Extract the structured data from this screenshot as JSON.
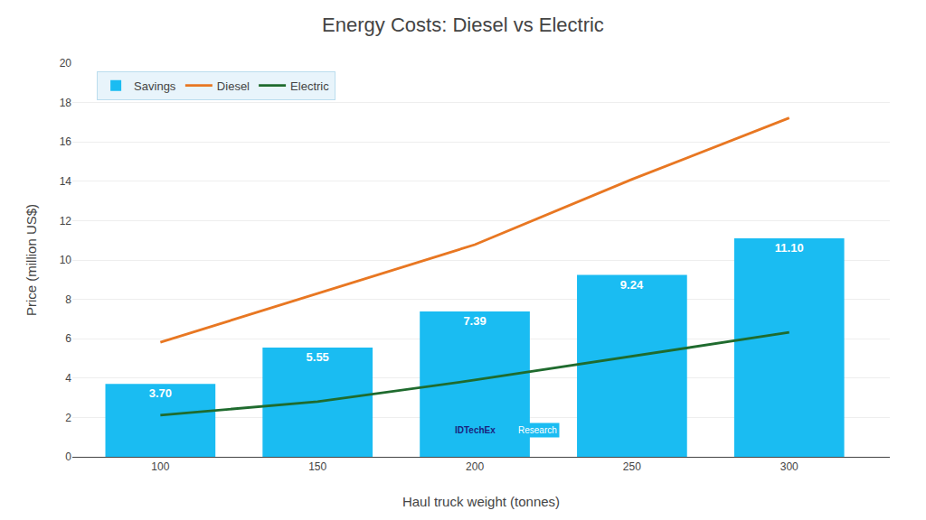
{
  "chart_data": {
    "type": "bar",
    "title": "Energy Costs: Diesel vs Electric",
    "x_label": "Haul truck weight (tonnes)",
    "y_label": "Price (million US$)",
    "x": [
      100,
      150,
      200,
      250,
      300
    ],
    "series": [
      {
        "name": "Savings",
        "type": "bar",
        "color": "#1ABCF2",
        "values": [
          3.7,
          5.55,
          7.39,
          9.24,
          11.1
        ],
        "value_labels": [
          "3.70",
          "5.55",
          "7.39",
          "9.24",
          "11.10"
        ]
      },
      {
        "name": "Diesel",
        "type": "line",
        "color": "#E87722",
        "values": [
          5.82,
          8.3,
          10.78,
          14.1,
          17.22
        ]
      },
      {
        "name": "Electric",
        "type": "line",
        "color": "#1F6B2E",
        "values": [
          2.12,
          2.8,
          3.9,
          5.1,
          6.32
        ]
      }
    ],
    "data_labels": true,
    "xlim": [
      72,
      332
    ],
    "xticks": [
      100,
      150,
      200,
      250,
      300
    ],
    "ylim": [
      0,
      20
    ],
    "yticks": [
      0,
      2,
      4,
      6,
      8,
      10,
      12,
      14,
      16,
      18,
      20
    ],
    "grid": true,
    "legend": "upper left",
    "annotations": [
      {
        "text": "IDTechEx",
        "x": 200,
        "y": 1.35
      },
      {
        "text": "Research",
        "x": 213,
        "y": 1.35
      }
    ]
  }
}
